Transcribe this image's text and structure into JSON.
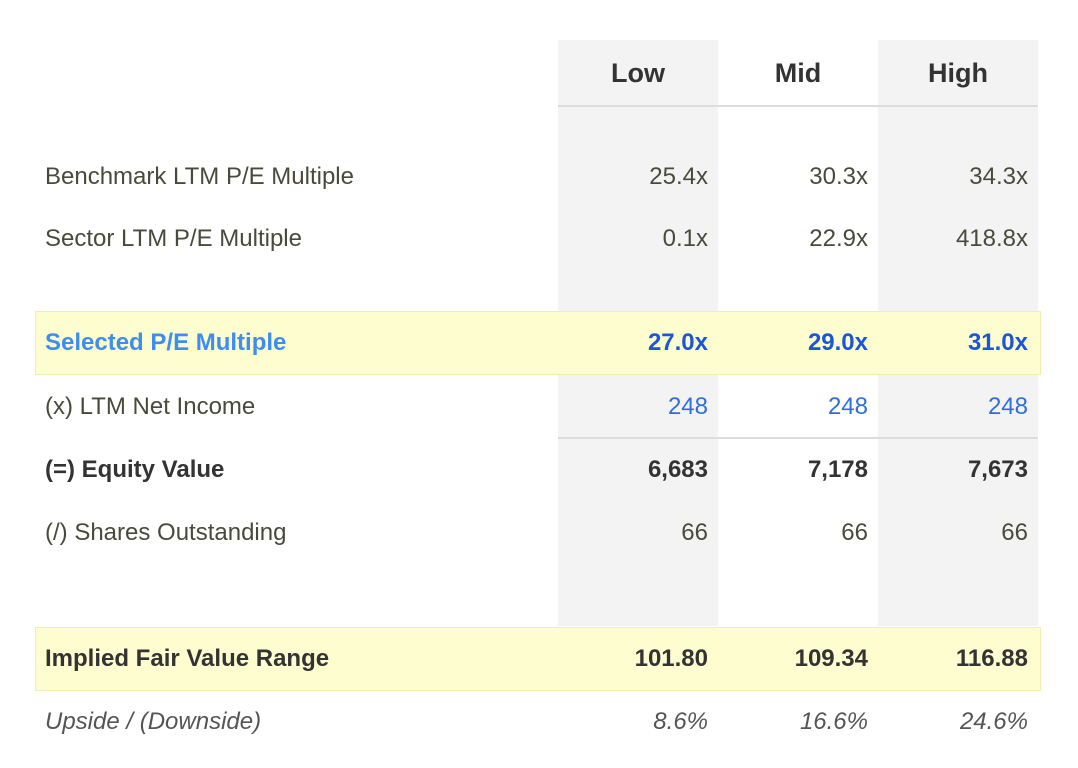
{
  "table": {
    "columns": [
      "Low",
      "Mid",
      "High"
    ],
    "rows": [
      {
        "label": "Benchmark LTM P/E Multiple",
        "values": [
          "25.4x",
          "30.3x",
          "34.3x"
        ]
      },
      {
        "label": "Sector LTM P/E Multiple",
        "values": [
          "0.1x",
          "22.9x",
          "418.8x"
        ]
      },
      {
        "label": "Selected P/E Multiple",
        "values": [
          "27.0x",
          "29.0x",
          "31.0x"
        ]
      },
      {
        "label": "(x) LTM Net Income",
        "values": [
          "248",
          "248",
          "248"
        ]
      },
      {
        "label": "(=) Equity Value",
        "values": [
          "6,683",
          "7,178",
          "7,673"
        ]
      },
      {
        "label": "(/) Shares Outstanding",
        "values": [
          "66",
          "66",
          "66"
        ]
      },
      {
        "label": "Implied Fair Value Range",
        "values": [
          "101.80",
          "109.34",
          "116.88"
        ]
      },
      {
        "label": "Upside / (Downside)",
        "values": [
          "8.6%",
          "16.6%",
          "24.6%"
        ]
      }
    ]
  }
}
